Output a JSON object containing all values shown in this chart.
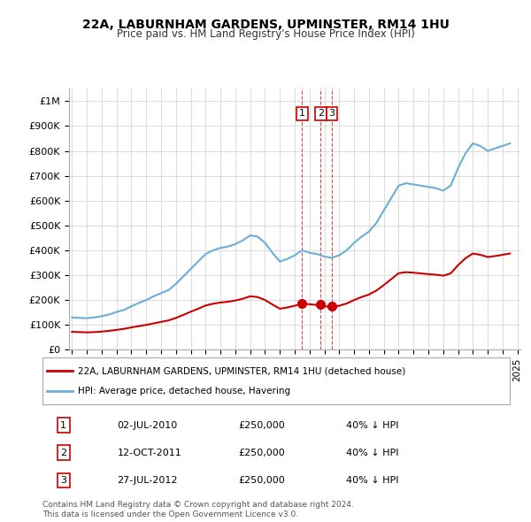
{
  "title1": "22A, LABURNHAM GARDENS, UPMINSTER, RM14 1HU",
  "title2": "Price paid vs. HM Land Registry's House Price Index (HPI)",
  "ylabel": "",
  "background_color": "#ffffff",
  "plot_bg_color": "#ffffff",
  "grid_color": "#dddddd",
  "hpi_color": "#6baed6",
  "price_color": "#cc0000",
  "ylim": [
    0,
    1050000
  ],
  "yticks": [
    0,
    100000,
    200000,
    300000,
    400000,
    500000,
    600000,
    700000,
    800000,
    900000,
    1000000
  ],
  "ytick_labels": [
    "£0",
    "£100K",
    "£200K",
    "£300K",
    "£400K",
    "£500K",
    "£600K",
    "£700K",
    "£800K",
    "£900K",
    "£1M"
  ],
  "sale_dates": [
    "2010-07-02",
    "2011-10-12",
    "2012-07-27"
  ],
  "sale_prices": [
    250000,
    250000,
    250000
  ],
  "sale_labels": [
    "1",
    "2",
    "3"
  ],
  "legend_label_price": "22A, LABURNHAM GARDENS, UPMINSTER, RM14 1HU (detached house)",
  "legend_label_hpi": "HPI: Average price, detached house, Havering",
  "table_rows": [
    [
      "1",
      "02-JUL-2010",
      "£250,000",
      "40% ↓ HPI"
    ],
    [
      "2",
      "12-OCT-2011",
      "£250,000",
      "40% ↓ HPI"
    ],
    [
      "3",
      "27-JUL-2012",
      "£250,000",
      "40% ↓ HPI"
    ]
  ],
  "footer": "Contains HM Land Registry data © Crown copyright and database right 2024.\nThis data is licensed under the Open Government Licence v3.0.",
  "hpi_x": [
    1995.0,
    1995.5,
    1996.0,
    1996.5,
    1997.0,
    1997.5,
    1998.0,
    1998.5,
    1999.0,
    1999.5,
    2000.0,
    2000.5,
    2001.0,
    2001.5,
    2002.0,
    2002.5,
    2003.0,
    2003.5,
    2004.0,
    2004.5,
    2005.0,
    2005.5,
    2006.0,
    2006.5,
    2007.0,
    2007.5,
    2008.0,
    2008.5,
    2009.0,
    2009.5,
    2010.0,
    2010.5,
    2011.0,
    2011.5,
    2012.0,
    2012.5,
    2013.0,
    2013.5,
    2014.0,
    2014.5,
    2015.0,
    2015.5,
    2016.0,
    2016.5,
    2017.0,
    2017.5,
    2018.0,
    2018.5,
    2019.0,
    2019.5,
    2020.0,
    2020.5,
    2021.0,
    2021.5,
    2022.0,
    2022.5,
    2023.0,
    2023.5,
    2024.0,
    2024.5
  ],
  "hpi_y": [
    130000,
    128000,
    127000,
    130000,
    135000,
    142000,
    152000,
    160000,
    175000,
    188000,
    200000,
    215000,
    228000,
    240000,
    265000,
    295000,
    325000,
    355000,
    385000,
    400000,
    410000,
    415000,
    425000,
    440000,
    460000,
    455000,
    430000,
    390000,
    355000,
    365000,
    380000,
    400000,
    390000,
    385000,
    375000,
    370000,
    380000,
    400000,
    430000,
    455000,
    475000,
    510000,
    560000,
    610000,
    660000,
    670000,
    665000,
    660000,
    655000,
    650000,
    640000,
    660000,
    730000,
    790000,
    830000,
    820000,
    800000,
    810000,
    820000,
    830000
  ],
  "price_x": [
    1995.0,
    1995.5,
    1996.0,
    1996.5,
    1997.0,
    1997.5,
    1998.0,
    1998.5,
    1999.0,
    1999.5,
    2000.0,
    2000.5,
    2001.0,
    2001.5,
    2002.0,
    2002.5,
    2003.0,
    2003.5,
    2004.0,
    2004.5,
    2005.0,
    2005.5,
    2006.0,
    2006.5,
    2007.0,
    2007.5,
    2008.0,
    2008.5,
    2009.0,
    2009.5,
    2010.0,
    2010.5,
    2011.0,
    2011.5,
    2012.0,
    2012.5,
    2013.0,
    2013.5,
    2014.0,
    2014.5,
    2015.0,
    2015.5,
    2016.0,
    2016.5,
    2017.0,
    2017.5,
    2018.0,
    2018.5,
    2019.0,
    2019.5,
    2020.0,
    2020.5,
    2021.0,
    2021.5,
    2022.0,
    2022.5,
    2023.0,
    2023.5,
    2024.0,
    2024.5
  ],
  "price_y": [
    72000,
    71000,
    70000,
    71000,
    73000,
    76000,
    80000,
    84000,
    90000,
    95000,
    100000,
    106000,
    112000,
    118000,
    128000,
    140000,
    153000,
    165000,
    178000,
    185000,
    190000,
    193000,
    198000,
    205000,
    215000,
    212000,
    200000,
    182000,
    165000,
    170000,
    177000,
    186000,
    183000,
    180000,
    175000,
    172000,
    177000,
    186000,
    200000,
    212000,
    222000,
    238000,
    260000,
    284000,
    308000,
    312000,
    310000,
    307000,
    304000,
    302000,
    298000,
    307000,
    340000,
    368000,
    387000,
    382000,
    373000,
    377000,
    382000,
    387000
  ]
}
